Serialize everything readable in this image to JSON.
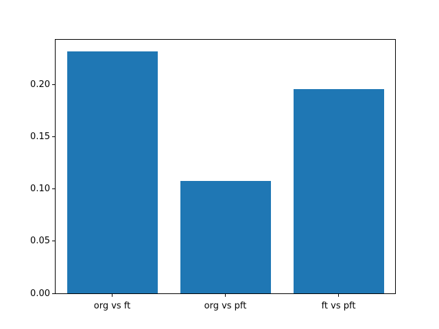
{
  "chart_data": {
    "type": "bar",
    "title": "",
    "xlabel": "",
    "ylabel": "",
    "categories": [
      "org vs ft",
      "org vs pft",
      "ft vs pft"
    ],
    "values": [
      0.232,
      0.108,
      0.196
    ],
    "yticks": [
      0.0,
      0.05,
      0.1,
      0.15,
      0.2
    ],
    "ytick_labels": [
      "0.00",
      "0.05",
      "0.10",
      "0.15",
      "0.20"
    ],
    "ylim": [
      0,
      0.2434
    ],
    "bar_color": "#1f77b4",
    "bar_width_fraction": 0.8,
    "grid": false,
    "legend": false,
    "spine_color": "#000000",
    "background_color": "#ffffff"
  }
}
